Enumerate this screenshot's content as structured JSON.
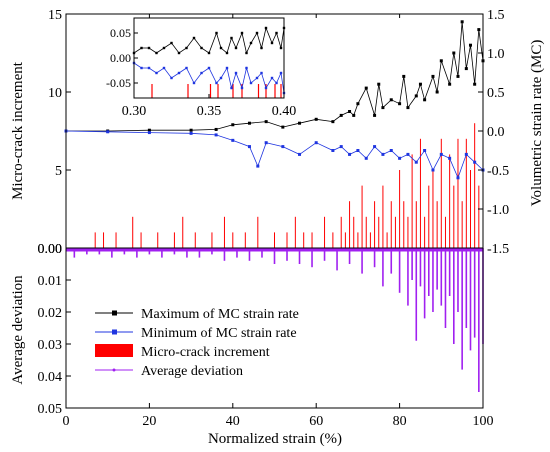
{
  "chart_data": [
    {
      "type": "line",
      "panel": "top",
      "xlabel": "",
      "ylabel": "Micro-crack increment",
      "y2label": "Volumetric strain rate (MC)",
      "xlim": [
        0,
        100
      ],
      "ylim": [
        0,
        15
      ],
      "y2lim": [
        -1.5,
        1.5
      ],
      "yticks": [
        "0.00",
        "5",
        "10",
        "15"
      ],
      "y2ticks": [
        "-1.5",
        "-1.0",
        "-0.5",
        "0.0",
        "0.5",
        "1.0",
        "1.5"
      ],
      "colors": {
        "max": "#000000",
        "min": "#1f35e0",
        "increment": "#ff0000"
      },
      "series": [
        {
          "name": "Maximum of MC strain rate",
          "axis": "y2",
          "x": [
            0,
            10,
            20,
            30,
            36,
            40,
            44,
            48,
            52,
            56,
            60,
            64,
            66,
            68,
            69,
            70,
            72,
            74,
            75,
            76,
            78,
            80,
            81,
            82,
            84,
            85,
            86,
            88,
            89,
            90,
            92,
            93,
            94,
            95,
            96,
            97,
            98,
            99,
            100
          ],
          "values": [
            0.0,
            0.0,
            0.01,
            0.01,
            0.02,
            0.08,
            0.1,
            0.12,
            0.05,
            0.1,
            0.15,
            0.12,
            0.2,
            0.25,
            0.2,
            0.35,
            0.55,
            0.2,
            0.6,
            0.3,
            0.4,
            0.35,
            0.7,
            0.3,
            0.45,
            0.6,
            0.4,
            0.7,
            0.5,
            0.9,
            0.6,
            1.0,
            0.7,
            1.4,
            0.8,
            1.1,
            0.6,
            1.3,
            0.9
          ]
        },
        {
          "name": "Minimum of MC strain rate",
          "axis": "y2",
          "x": [
            0,
            10,
            20,
            30,
            36,
            40,
            44,
            46,
            48,
            52,
            56,
            60,
            64,
            66,
            68,
            70,
            72,
            74,
            76,
            78,
            80,
            82,
            84,
            86,
            88,
            90,
            92,
            94,
            96,
            98,
            100
          ],
          "values": [
            0.0,
            -0.01,
            -0.02,
            -0.03,
            -0.05,
            -0.12,
            -0.2,
            -0.45,
            -0.15,
            -0.2,
            -0.3,
            -0.15,
            -0.25,
            -0.2,
            -0.3,
            -0.25,
            -0.35,
            -0.2,
            -0.3,
            -0.25,
            -0.35,
            -0.3,
            -0.4,
            -0.25,
            -0.5,
            -0.3,
            -0.35,
            -0.6,
            -0.3,
            -0.4,
            -0.5
          ]
        },
        {
          "name": "Micro-crack increment",
          "axis": "y",
          "type": "bar",
          "x": [
            7,
            9,
            12,
            16,
            18,
            22,
            26,
            28,
            31,
            35,
            38,
            40,
            43,
            46,
            50,
            53,
            55,
            57,
            59,
            62,
            64,
            66,
            67,
            68,
            69,
            70,
            71,
            72,
            73,
            74,
            75,
            76,
            77,
            78,
            79,
            80,
            81,
            82,
            83,
            84,
            85,
            86,
            87,
            88,
            89,
            90,
            91,
            92,
            93,
            94,
            95,
            96,
            97,
            98,
            99,
            100
          ],
          "values": [
            1,
            1,
            1,
            2,
            1,
            1,
            1,
            2,
            1,
            1,
            2,
            1,
            1,
            2,
            1,
            1,
            2,
            1,
            1,
            2,
            1,
            2,
            1,
            3,
            2,
            1,
            4,
            2,
            1,
            3,
            2,
            4,
            1,
            3,
            2,
            5,
            3,
            2,
            6,
            3,
            7,
            2,
            4,
            5,
            3,
            7,
            2,
            6,
            4,
            7,
            3,
            7,
            5,
            8,
            4,
            6
          ]
        }
      ],
      "inset": {
        "xlim": [
          0.3,
          0.4
        ],
        "ylim": [
          -0.08,
          0.08
        ],
        "xticks": [
          "0.30",
          "0.35",
          "0.40"
        ],
        "yticks": [
          "0.05",
          "0.00",
          "-0.05"
        ],
        "series": [
          {
            "name": "Maximum of MC strain rate",
            "x": [
              0.3,
              0.305,
              0.31,
              0.315,
              0.32,
              0.325,
              0.33,
              0.335,
              0.34,
              0.345,
              0.35,
              0.355,
              0.358,
              0.362,
              0.365,
              0.368,
              0.372,
              0.375,
              0.378,
              0.382,
              0.385,
              0.388,
              0.392,
              0.395,
              0.398,
              0.4
            ],
            "values": [
              0.01,
              0.02,
              0.02,
              0.01,
              0.02,
              0.03,
              0.01,
              0.02,
              0.04,
              0.02,
              0.01,
              0.05,
              0.02,
              0.01,
              0.04,
              0.02,
              0.05,
              0.01,
              0.03,
              0.05,
              0.02,
              0.06,
              0.03,
              0.05,
              0.02,
              0.06
            ]
          },
          {
            "name": "Minimum of MC strain rate",
            "x": [
              0.3,
              0.305,
              0.31,
              0.315,
              0.32,
              0.325,
              0.33,
              0.335,
              0.34,
              0.345,
              0.35,
              0.355,
              0.358,
              0.362,
              0.365,
              0.368,
              0.372,
              0.375,
              0.378,
              0.382,
              0.385,
              0.388,
              0.392,
              0.395,
              0.398,
              0.4
            ],
            "values": [
              -0.01,
              -0.02,
              -0.02,
              -0.03,
              -0.02,
              -0.04,
              -0.03,
              -0.02,
              -0.05,
              -0.03,
              -0.02,
              -0.05,
              -0.04,
              -0.02,
              -0.06,
              -0.03,
              -0.06,
              -0.02,
              -0.05,
              -0.04,
              -0.03,
              -0.06,
              -0.04,
              -0.05,
              -0.03,
              -0.07
            ]
          },
          {
            "name": "Micro-crack increment",
            "type": "bar",
            "x": [
              0.312,
              0.336,
              0.351,
              0.356,
              0.366,
              0.372,
              0.383,
              0.388,
              0.394,
              0.398
            ],
            "values": [
              1,
              1,
              1,
              1,
              1,
              1,
              1,
              1,
              1,
              1
            ]
          }
        ]
      }
    },
    {
      "type": "bar",
      "panel": "bottom",
      "xlabel": "Normalized strain (%)",
      "ylabel": "Average deviation",
      "xlim": [
        0,
        100
      ],
      "ylim": [
        0,
        0.05
      ],
      "inverted_y": true,
      "xticks": [
        "0",
        "20",
        "40",
        "60",
        "80",
        "100"
      ],
      "yticks": [
        "0.00",
        "0.01",
        "0.02",
        "0.03",
        "0.04",
        "0.05"
      ],
      "colors": {
        "deviation": "#a020f0"
      },
      "series": [
        {
          "name": "Average deviation",
          "x": [
            2,
            5,
            8,
            11,
            14,
            17,
            20,
            23,
            26,
            29,
            32,
            35,
            38,
            41,
            44,
            47,
            50,
            53,
            56,
            59,
            62,
            65,
            68,
            71,
            74,
            76,
            78,
            80,
            82,
            83,
            84,
            85,
            86,
            87,
            88,
            89,
            90,
            91,
            92,
            93,
            94,
            95,
            96,
            97,
            98,
            99,
            100
          ],
          "values": [
            0.003,
            0.002,
            0.002,
            0.003,
            0.002,
            0.003,
            0.002,
            0.003,
            0.002,
            0.003,
            0.003,
            0.002,
            0.004,
            0.003,
            0.004,
            0.003,
            0.005,
            0.004,
            0.005,
            0.006,
            0.004,
            0.007,
            0.005,
            0.008,
            0.006,
            0.012,
            0.008,
            0.014,
            0.018,
            0.01,
            0.029,
            0.012,
            0.022,
            0.015,
            0.02,
            0.013,
            0.018,
            0.025,
            0.015,
            0.03,
            0.02,
            0.038,
            0.025,
            0.032,
            0.028,
            0.045,
            0.03
          ]
        }
      ]
    }
  ],
  "legend": {
    "placement": "bottom-left",
    "items": [
      {
        "label": "Maximum of MC strain rate",
        "color": "#000000",
        "kind": "line-square"
      },
      {
        "label": "Minimum of MC strain rate",
        "color": "#1f35e0",
        "kind": "line-square"
      },
      {
        "label": "Micro-crack increment",
        "color": "#ff0000",
        "kind": "block"
      },
      {
        "label": "Average deviation",
        "color": "#a020f0",
        "kind": "line-dot"
      }
    ]
  }
}
